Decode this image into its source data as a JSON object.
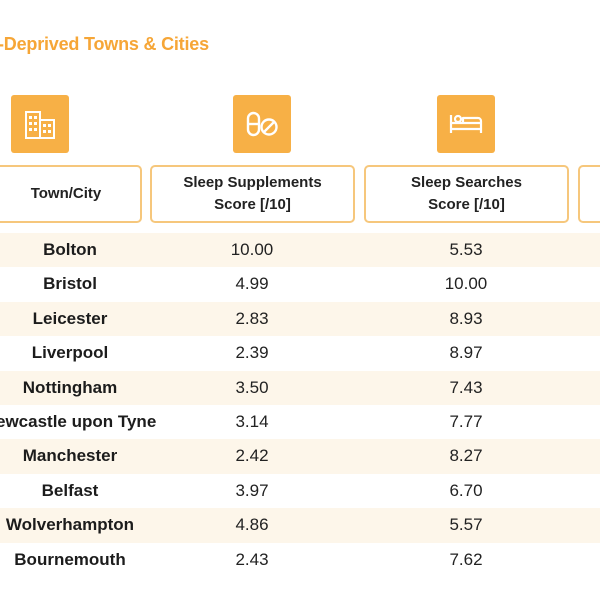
{
  "title": "-Deprived Towns & Cities",
  "colors": {
    "accent": "#f6a637",
    "tile": "#f7b046",
    "border": "#f6c77c",
    "row_shade": "#fdf6ea"
  },
  "icons": {
    "col1": "buildings-icon",
    "col2": "pills-icon",
    "col3": "bed-icon"
  },
  "headers": {
    "city": "Town/City",
    "supplements": "Sleep Supplements\nScore [/10]",
    "searches": "Sleep Searches\nScore [/10]"
  },
  "rows": [
    {
      "city": "Bolton",
      "supplements": "10.00",
      "searches": "5.53"
    },
    {
      "city": "Bristol",
      "supplements": "4.99",
      "searches": "10.00"
    },
    {
      "city": "Leicester",
      "supplements": "2.83",
      "searches": "8.93"
    },
    {
      "city": "Liverpool",
      "supplements": "2.39",
      "searches": "8.97"
    },
    {
      "city": "Nottingham",
      "supplements": "3.50",
      "searches": "7.43"
    },
    {
      "city": "Newcastle upon Tyne",
      "supplements": "3.14",
      "searches": "7.77"
    },
    {
      "city": "Manchester",
      "supplements": "2.42",
      "searches": "8.27"
    },
    {
      "city": "Belfast",
      "supplements": "3.97",
      "searches": "6.70"
    },
    {
      "city": "Wolverhampton",
      "supplements": "4.86",
      "searches": "5.57"
    },
    {
      "city": "Bournemouth",
      "supplements": "2.43",
      "searches": "7.62"
    }
  ]
}
